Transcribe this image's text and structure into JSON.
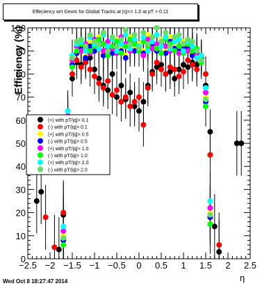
{
  "chart_data": {
    "type": "scatter",
    "title": "Effeciency wrt Geom for Global Tracks   at |η|<= 1.0 at pT > 0.11",
    "title_display": "Effeciency wrt Geom for Global Tracks   at |η|<= 1.0 at pT > 0.11",
    "xlabel": "η",
    "ylabel": "Efficiency (%)",
    "xlim": [
      -2.5,
      2.5
    ],
    "ylim": [
      0,
      100
    ],
    "xticks": [
      "−2.5",
      "−2",
      "−1.5",
      "−1",
      "−0.5",
      "0",
      "0.5",
      "1",
      "1.5",
      "2",
      "2.5"
    ],
    "yticks": [
      "0",
      "10",
      "20",
      "30",
      "40",
      "50",
      "60",
      "70",
      "80",
      "90",
      "100"
    ],
    "grid": false,
    "legend_position": "left-middle",
    "series": [
      {
        "name": "(+) with pT/|q|> 0.1",
        "color": "#000000",
        "x": [
          -2.3,
          -2.2,
          -1.8,
          -1.7,
          -1.6,
          -1.5,
          -1.4,
          -1.3,
          -1.2,
          -1.1,
          -1.0,
          -0.9,
          -0.8,
          -0.7,
          -0.6,
          -0.5,
          -0.4,
          -0.3,
          -0.2,
          -0.1,
          0.0,
          0.1,
          0.2,
          0.3,
          0.4,
          0.5,
          0.6,
          0.7,
          0.8,
          0.9,
          1.0,
          1.1,
          1.2,
          1.3,
          1.4,
          1.5,
          1.6,
          1.7,
          1.8,
          2.2,
          2.3
        ],
        "y": [
          25,
          29,
          4,
          19,
          52,
          78,
          85,
          84,
          86,
          87,
          82,
          78,
          75,
          73,
          80,
          70,
          75,
          69,
          72,
          66,
          64,
          68,
          75,
          81,
          83,
          84,
          80,
          81,
          78,
          82,
          84,
          83,
          85,
          84,
          87,
          75,
          55,
          14,
          3,
          50,
          50
        ]
      },
      {
        "name": "(-) with pT/|q|> 0.1",
        "color": "#ff0000",
        "x": [
          -2.1,
          -1.9,
          -1.7,
          -1.6,
          -1.5,
          -1.4,
          -1.3,
          -1.2,
          -1.1,
          -1.0,
          -0.9,
          -0.8,
          -0.7,
          -0.6,
          -0.5,
          -0.4,
          -0.3,
          -0.2,
          -0.1,
          0.0,
          0.1,
          0.2,
          0.3,
          0.4,
          0.5,
          0.6,
          0.7,
          0.8,
          0.9,
          1.0,
          1.1,
          1.2,
          1.3,
          1.4,
          1.5,
          1.6,
          1.8
        ],
        "y": [
          18,
          5,
          20,
          55,
          80,
          86,
          83,
          85,
          82,
          79,
          76,
          74,
          77,
          71,
          73,
          68,
          70,
          66,
          68,
          70,
          58,
          74,
          80,
          85,
          82,
          80,
          83,
          82,
          79,
          81,
          86,
          84,
          82,
          88,
          80,
          45,
          6
        ]
      },
      {
        "name": "(+) with pT/|q|> 0.5",
        "color": "#ffff00",
        "x": [
          -1.7,
          -1.6,
          -1.5,
          -1.4,
          -1.3,
          -1.2,
          -1.1,
          -1.0,
          -0.9,
          -0.8,
          -0.7,
          -0.6,
          -0.5,
          -0.4,
          -0.3,
          -0.2,
          -0.1,
          0.0,
          0.1,
          0.2,
          0.3,
          0.4,
          0.5,
          0.6,
          0.7,
          0.8,
          0.9,
          1.0,
          1.1,
          1.2,
          1.3,
          1.4,
          1.5,
          1.6
        ],
        "y": [
          10,
          60,
          85,
          90,
          92,
          88,
          94,
          91,
          96,
          89,
          93,
          90,
          95,
          92,
          88,
          96,
          91,
          93,
          90,
          97,
          94,
          92,
          95,
          90,
          96,
          93,
          91,
          94,
          92,
          89,
          90,
          88,
          70,
          20
        ]
      },
      {
        "name": "(-) with pT/|q|> 0.5",
        "color": "#0000ff",
        "x": [
          -1.7,
          -1.6,
          -1.5,
          -1.4,
          -1.3,
          -1.2,
          -1.1,
          -1.0,
          -0.9,
          -0.8,
          -0.7,
          -0.6,
          -0.5,
          -0.4,
          -0.3,
          -0.2,
          -0.1,
          0.0,
          0.1,
          0.2,
          0.3,
          0.4,
          0.5,
          0.6,
          0.7,
          0.8,
          0.9,
          1.0,
          1.1,
          1.2,
          1.3,
          1.4,
          1.5,
          1.6
        ],
        "y": [
          8,
          58,
          84,
          89,
          91,
          87,
          92,
          90,
          94,
          88,
          91,
          89,
          93,
          90,
          87,
          94,
          90,
          92,
          89,
          95,
          93,
          90,
          93,
          89,
          94,
          91,
          90,
          92,
          91,
          88,
          89,
          87,
          68,
          18
        ]
      },
      {
        "name": "(+) with pT/|q|> 1.0",
        "color": "#ff00ff",
        "x": [
          -1.7,
          -1.6,
          -1.5,
          -1.4,
          -1.3,
          -1.2,
          -1.1,
          -1.0,
          -0.9,
          -0.8,
          -0.7,
          -0.6,
          -0.5,
          -0.4,
          -0.3,
          -0.2,
          -0.1,
          0.0,
          0.1,
          0.2,
          0.3,
          0.4,
          0.5,
          0.6,
          0.7,
          0.8,
          0.9,
          1.0,
          1.1,
          1.2,
          1.3,
          1.4,
          1.5,
          1.6
        ],
        "y": [
          12,
          62,
          86,
          92,
          90,
          93,
          89,
          95,
          92,
          90,
          94,
          91,
          89,
          96,
          93,
          90,
          94,
          92,
          88,
          95,
          91,
          93,
          94,
          92,
          90,
          95,
          89,
          93,
          90,
          91,
          88,
          86,
          72,
          22
        ]
      },
      {
        "name": "(-) with pT/|q|> 1.0",
        "color": "#00ff00",
        "x": [
          -1.7,
          -1.6,
          -1.5,
          -1.4,
          -1.3,
          -1.2,
          -1.1,
          -1.0,
          -0.9,
          -0.8,
          -0.7,
          -0.6,
          -0.5,
          -0.4,
          -0.3,
          -0.2,
          -0.1,
          0.0,
          0.1,
          0.2,
          0.3,
          0.4,
          0.5,
          0.6,
          0.7,
          0.8,
          0.9,
          1.0,
          1.1,
          1.2,
          1.3,
          1.4,
          1.5,
          1.6
        ],
        "y": [
          6,
          57,
          83,
          90,
          93,
          91,
          90,
          92,
          95,
          93,
          88,
          92,
          94,
          89,
          92,
          95,
          93,
          90,
          94,
          92,
          96,
          91,
          89,
          95,
          93,
          90,
          92,
          89,
          93,
          90,
          91,
          85,
          66,
          15
        ]
      },
      {
        "name": "(+) with pT/|q|> 2.0",
        "color": "#00ffff",
        "x": [
          -1.7,
          -1.6,
          -1.5,
          -1.4,
          -1.3,
          -1.2,
          -1.1,
          -1.0,
          -0.9,
          -0.8,
          -0.7,
          -0.6,
          -0.5,
          -0.4,
          -0.3,
          -0.2,
          -0.1,
          0.0,
          0.1,
          0.2,
          0.3,
          0.4,
          0.5,
          0.6,
          0.7,
          0.8,
          0.9,
          1.0,
          1.1,
          1.2,
          1.3,
          1.4,
          1.5,
          1.6
        ],
        "y": [
          14,
          64,
          88,
          93,
          94,
          90,
          96,
          93,
          91,
          97,
          92,
          95,
          90,
          93,
          97,
          91,
          95,
          92,
          96,
          90,
          94,
          97,
          92,
          96,
          91,
          94,
          95,
          90,
          94,
          92,
          87,
          88,
          74,
          25
        ]
      },
      {
        "name": "(-) with pT/|q|> 2.0",
        "color": "#66dd66",
        "x": [
          -1.7,
          -1.6,
          -1.5,
          -1.4,
          -1.3,
          -1.2,
          -1.1,
          -1.0,
          -0.9,
          -0.8,
          -0.7,
          -0.6,
          -0.5,
          -0.4,
          -0.3,
          -0.2,
          -0.1,
          0.0,
          0.1,
          0.2,
          0.3,
          0.4,
          0.5,
          0.6,
          0.7,
          0.8,
          0.9,
          1.0,
          1.1,
          1.2,
          1.3,
          1.4,
          1.5,
          1.6
        ],
        "y": [
          9,
          59,
          87,
          94,
          95,
          92,
          97,
          94,
          93,
          98,
          90,
          96,
          92,
          95,
          99,
          93,
          97,
          91,
          98,
          93,
          96,
          100,
          94,
          98,
          92,
          96,
          97,
          93,
          95,
          94,
          90,
          86,
          69,
          19
        ]
      }
    ]
  },
  "footer": {
    "datestamp": "Wed Oct  8 18:27:47 2014"
  }
}
